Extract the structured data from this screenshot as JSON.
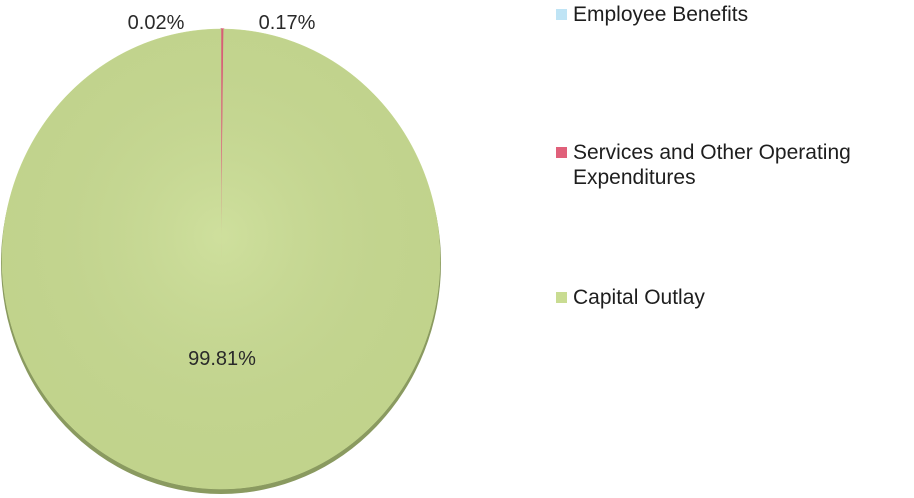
{
  "chart_data": {
    "type": "pie",
    "title": "",
    "series": [
      {
        "name": "Employee Benefits",
        "value": 0.02,
        "label": "0.02%",
        "color": "#bfe4f5"
      },
      {
        "name": "Services and Other Operating Expenditures",
        "value": 0.17,
        "label": "0.17%",
        "color": "#e0607a"
      },
      {
        "name": "Capital Outlay",
        "value": 99.81,
        "label": "99.81%",
        "color": "#c9dc92"
      }
    ],
    "legend_position": "right",
    "start_angle": "12 o'clock, clockwise"
  }
}
